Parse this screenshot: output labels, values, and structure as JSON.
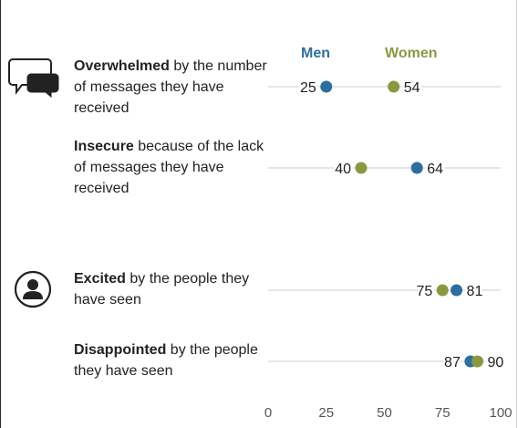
{
  "legend": {
    "men": "Men",
    "women": "Women"
  },
  "colors": {
    "men": "#2e6e9e",
    "women": "#8c9743",
    "line": "#cccccc",
    "text": "#222222"
  },
  "rows": [
    {
      "bold": "Overwhelmed",
      "rest": " by the number of messages they have received",
      "icon": "chat-bubbles-icon"
    },
    {
      "bold": "Insecure",
      "rest": " because of the lack of messages they have received",
      "icon": ""
    },
    {
      "bold": "Excited",
      "rest": " by the people they have seen",
      "icon": "user-profile-icon"
    },
    {
      "bold": "Disappointed",
      "rest": " by the people they have seen",
      "icon": ""
    }
  ],
  "chart_data": {
    "type": "dot",
    "categories": [
      "Overwhelmed by the number of messages they have received",
      "Insecure because of the lack of messages they have received",
      "Excited by the people they have seen",
      "Disappointed by the people they have seen"
    ],
    "series": [
      {
        "name": "Men",
        "values": [
          25,
          64,
          81,
          87
        ]
      },
      {
        "name": "Women",
        "values": [
          54,
          40,
          75,
          90
        ]
      }
    ],
    "xlim": [
      0,
      100
    ],
    "xticks": [
      "0",
      "25",
      "50",
      "75",
      "100"
    ],
    "grid": false,
    "legend": "top"
  }
}
